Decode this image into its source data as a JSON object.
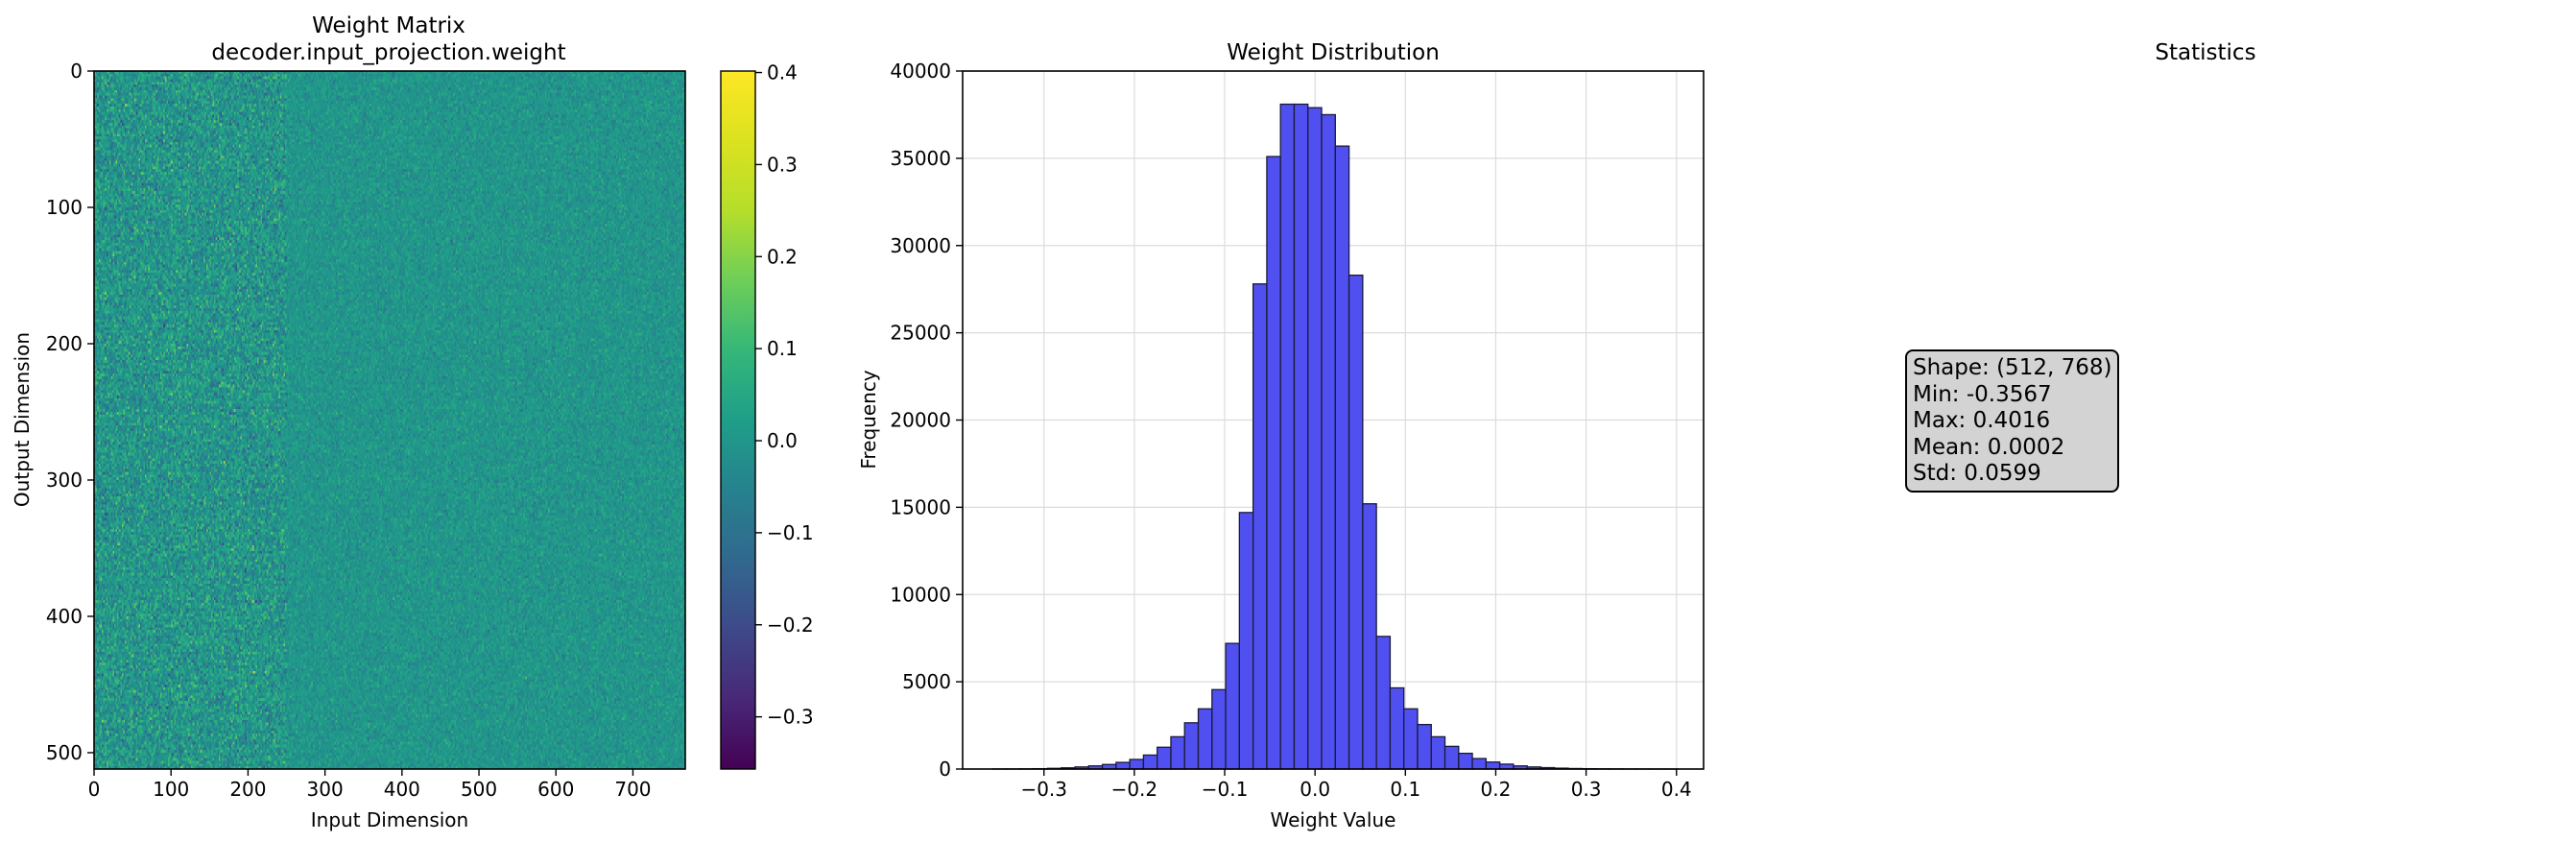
{
  "chart_data": [
    {
      "type": "heatmap",
      "title": "Weight Matrix",
      "subtitle": "decoder.input_projection.weight",
      "xlabel": "Input Dimension",
      "ylabel": "Output Dimension",
      "xlim": [
        0,
        768
      ],
      "ylim": [
        512,
        0
      ],
      "x_ticks": [
        0,
        100,
        200,
        300,
        400,
        500,
        600,
        700
      ],
      "y_ticks": [
        0,
        100,
        200,
        300,
        400,
        500
      ],
      "shape": [
        512,
        768
      ],
      "colormap": "viridis",
      "colorbar": {
        "range": [
          -0.3567,
          0.4016
        ],
        "ticks": [
          -0.3,
          -0.2,
          -0.1,
          0.0,
          0.1,
          0.2,
          0.3,
          0.4
        ]
      },
      "noise_std_left_columns": 0.06,
      "noise_std_right_columns": 0.03,
      "noise_transition_column": 250
    },
    {
      "type": "bar",
      "title": "Weight Distribution",
      "xlabel": "Weight Value",
      "ylabel": "Frequency",
      "xlim": [
        -0.39,
        0.43
      ],
      "ylim": [
        0,
        40000
      ],
      "x_ticks": [
        -0.3,
        -0.2,
        -0.1,
        0.0,
        0.1,
        0.2,
        0.3,
        0.4
      ],
      "y_ticks": [
        0,
        5000,
        10000,
        15000,
        20000,
        25000,
        30000,
        35000,
        40000
      ],
      "grid": true,
      "bar_color": "#5050f0",
      "bin_range": [
        -0.3567,
        0.4016
      ],
      "bins": 50,
      "values": [
        3,
        5,
        10,
        20,
        40,
        70,
        120,
        180,
        260,
        380,
        550,
        800,
        1250,
        1850,
        2650,
        3450,
        4550,
        7200,
        14700,
        27800,
        35100,
        38100,
        38100,
        37900,
        37500,
        35700,
        28300,
        15200,
        7600,
        4650,
        3450,
        2550,
        1850,
        1300,
        900,
        600,
        400,
        280,
        180,
        120,
        80,
        50,
        30,
        20,
        12,
        8,
        5,
        3,
        2,
        1
      ]
    }
  ],
  "statistics": {
    "title": "Statistics",
    "lines": [
      "Shape: (512, 768)",
      "Min: -0.3567",
      "Max: 0.4016",
      "Mean: 0.0002",
      "Std: 0.0599"
    ]
  }
}
